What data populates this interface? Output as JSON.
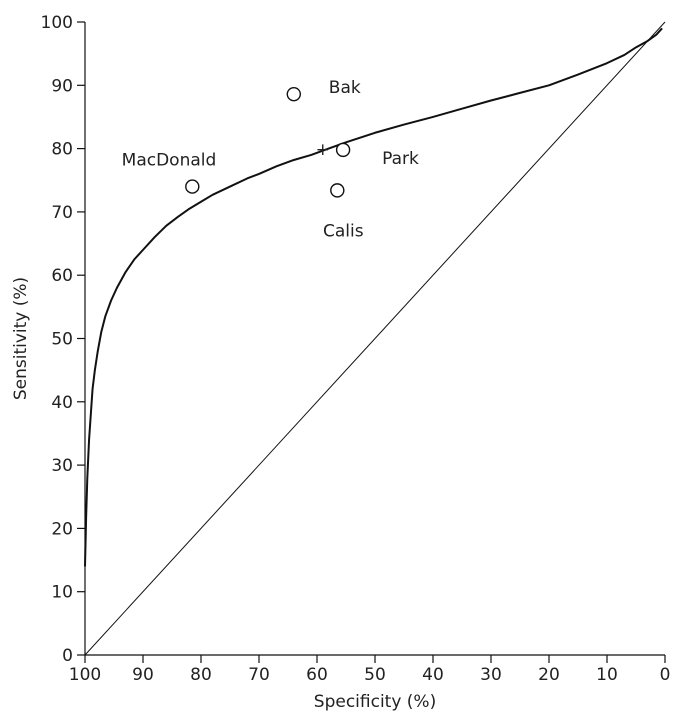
{
  "chart_data": {
    "type": "line",
    "title": "",
    "xlabel": "Specificity (%)",
    "ylabel": "Sensitivity (%)",
    "xlim": [
      100,
      0
    ],
    "ylim": [
      0,
      100
    ],
    "x_reversed": true,
    "grid": false,
    "xticks": [
      100,
      90,
      80,
      70,
      60,
      50,
      40,
      30,
      20,
      10,
      0
    ],
    "yticks": [
      0,
      10,
      20,
      30,
      40,
      50,
      60,
      70,
      80,
      90,
      100
    ],
    "xtick_labels": [
      "100",
      "90",
      "80",
      "70",
      "60",
      "50",
      "40",
      "30",
      "20",
      "10",
      "0"
    ],
    "ytick_labels": [
      "0",
      "10",
      "20",
      "30",
      "40",
      "50",
      "60",
      "70",
      "80",
      "90",
      "100"
    ],
    "series": [
      {
        "kind": "curve",
        "color": "#111111",
        "points": [
          [
            100,
            14
          ],
          [
            99.8,
            22
          ],
          [
            99.6,
            28
          ],
          [
            99.3,
            34
          ],
          [
            99,
            38
          ],
          [
            98.7,
            42
          ],
          [
            98.3,
            45
          ],
          [
            97.8,
            48
          ],
          [
            97.2,
            51
          ],
          [
            96.5,
            53.5
          ],
          [
            95.5,
            56
          ],
          [
            94.5,
            58
          ],
          [
            93,
            60.5
          ],
          [
            91.5,
            62.5
          ],
          [
            90,
            64
          ],
          [
            88,
            66
          ],
          [
            86,
            67.8
          ],
          [
            84,
            69.2
          ],
          [
            82,
            70.5
          ],
          [
            80,
            71.6
          ],
          [
            78,
            72.7
          ],
          [
            75,
            74
          ],
          [
            72,
            75.3
          ],
          [
            70,
            76
          ],
          [
            67,
            77.2
          ],
          [
            64,
            78.2
          ],
          [
            61,
            79
          ],
          [
            58,
            80
          ],
          [
            55,
            81
          ],
          [
            50,
            82.5
          ],
          [
            45,
            83.8
          ],
          [
            40,
            85
          ],
          [
            35,
            86.3
          ],
          [
            30,
            87.6
          ],
          [
            25,
            88.8
          ],
          [
            20,
            90
          ],
          [
            15,
            91.7
          ],
          [
            10,
            93.5
          ],
          [
            7,
            94.8
          ],
          [
            5,
            96
          ],
          [
            3,
            97
          ],
          [
            1.5,
            98
          ],
          [
            0.5,
            99
          ]
        ]
      },
      {
        "kind": "diagonal",
        "color": "#111111",
        "points": [
          [
            100,
            0
          ],
          [
            0,
            100
          ]
        ]
      }
    ],
    "cutoff_marker": {
      "x": 59,
      "y": 79.8,
      "symbol": "+"
    },
    "studies": [
      {
        "name": "MacDonald",
        "x": 81.5,
        "y": 74,
        "label_position": "above-left"
      },
      {
        "name": "Bak",
        "x": 64,
        "y": 88.6,
        "label_position": "right"
      },
      {
        "name": "Park",
        "x": 55.5,
        "y": 79.8,
        "label_position": "right"
      },
      {
        "name": "Calis",
        "x": 56.5,
        "y": 73.4,
        "label_position": "below"
      }
    ],
    "colors": {
      "line": "#111111",
      "text": "#222222",
      "background": "#ffffff"
    }
  }
}
